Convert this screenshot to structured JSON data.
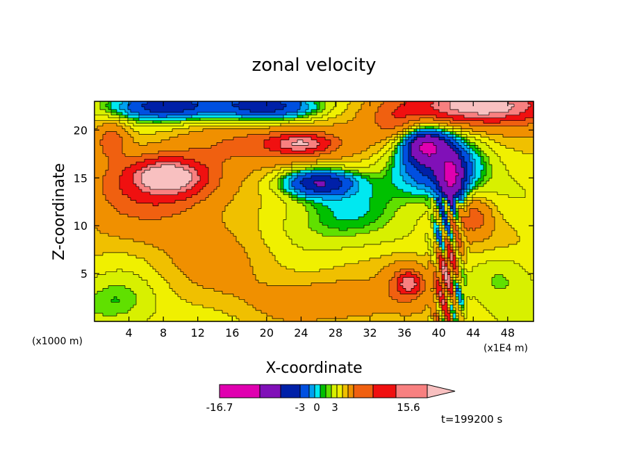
{
  "chart_data": {
    "type": "heatmap",
    "title": "zonal velocity",
    "xlabel": "X-coordinate",
    "ylabel": "Z-coordinate",
    "x_unit_left": "(x1000 m)",
    "x_unit_right": "(x1E4 m)",
    "xlim": [
      0,
      51
    ],
    "ylim": [
      0,
      23
    ],
    "x_ticks": [
      4,
      8,
      12,
      16,
      20,
      24,
      28,
      32,
      36,
      40,
      44,
      48
    ],
    "y_ticks": [
      5,
      10,
      15,
      20
    ],
    "colorbar": {
      "colors": [
        "#e000b0",
        "#8010b8",
        "#0020a8",
        "#0050e0",
        "#00a0f0",
        "#00e8f0",
        "#00c000",
        "#60e000",
        "#d8f000",
        "#f0f000",
        "#f0c000",
        "#f09000",
        "#f06010",
        "#f01010",
        "#f88080",
        "#f8c0c0"
      ],
      "labels": [
        {
          "text": "-16.7",
          "value": -16.7
        },
        {
          "text": "-3",
          "value": -3
        },
        {
          "text": "0",
          "value": 0
        },
        {
          "text": "3",
          "value": 3
        },
        {
          "text": "15.6",
          "value": 15.6
        }
      ]
    },
    "time_label": "t=199200 s",
    "blobs": [
      {
        "x": 7,
        "z": 13.5,
        "rx": 10,
        "rz": 5,
        "v": 4
      },
      {
        "x": 8.5,
        "z": 15,
        "rx": 5,
        "rz": 2.2,
        "v": 7
      },
      {
        "x": 8.5,
        "z": 15.1,
        "rx": 2.8,
        "rz": 1.2,
        "v": 9.5
      },
      {
        "x": 22,
        "z": 18.5,
        "rx": 8,
        "rz": 2.2,
        "v": 5
      },
      {
        "x": 24,
        "z": 18.6,
        "rx": 3,
        "rz": 0.9,
        "v": 8
      },
      {
        "x": 45,
        "z": 22.5,
        "rx": 12,
        "rz": 2.5,
        "v": 6
      },
      {
        "x": 45,
        "z": 22.5,
        "rx": 6,
        "rz": 1.3,
        "v": 9
      },
      {
        "x": 8,
        "z": 22.5,
        "rx": 6,
        "rz": 1.5,
        "v": -8
      },
      {
        "x": 20,
        "z": 22.5,
        "rx": 6,
        "rz": 1.5,
        "v": -8
      },
      {
        "x": 40,
        "z": 16,
        "rx": 5,
        "rz": 3,
        "v": -7
      },
      {
        "x": 38.5,
        "z": 18.5,
        "rx": 2.5,
        "rz": 1.8,
        "v": -10
      },
      {
        "x": 41.5,
        "z": 14.5,
        "rx": 1.5,
        "rz": 3,
        "v": -9
      },
      {
        "x": 26,
        "z": 14.5,
        "rx": 4,
        "rz": 1.4,
        "v": -8
      },
      {
        "x": 28,
        "z": 11,
        "rx": 8,
        "rz": 4,
        "v": -2.5
      },
      {
        "x": 3,
        "z": 2,
        "rx": 5,
        "rz": 3,
        "v": -2.5
      },
      {
        "x": 47,
        "z": 5,
        "rx": 4,
        "rz": 3,
        "v": -2.5
      },
      {
        "x": 36.5,
        "z": 4,
        "rx": 3,
        "rz": 2.5,
        "v": 4
      },
      {
        "x": 36.5,
        "z": 4,
        "rx": 1.2,
        "rz": 1,
        "v": 7
      },
      {
        "x": 41,
        "z": 5,
        "rx": 1.2,
        "rz": 4,
        "v": 9
      },
      {
        "x": 40.5,
        "z": 9,
        "rx": 1,
        "rz": 2,
        "v": -6
      },
      {
        "x": 42,
        "z": 3,
        "rx": 1,
        "rz": 2.5,
        "v": -5
      },
      {
        "x": 44,
        "z": 11,
        "rx": 2,
        "rz": 2,
        "v": 4
      },
      {
        "x": 45,
        "z": 8,
        "rx": 5,
        "rz": 4,
        "v": 1.5
      },
      {
        "x": 16,
        "z": 6,
        "rx": 12,
        "rz": 4,
        "v": 1.5
      },
      {
        "x": 20,
        "z": 2,
        "rx": 10,
        "rz": 2.5,
        "v": 1
      },
      {
        "x": 30,
        "z": 2,
        "rx": 6,
        "rz": 2,
        "v": 3
      },
      {
        "x": 2,
        "z": 19,
        "rx": 2,
        "rz": 2,
        "v": 4
      },
      {
        "x": 35,
        "z": 21,
        "rx": 3,
        "rz": 2,
        "v": 3
      }
    ]
  }
}
